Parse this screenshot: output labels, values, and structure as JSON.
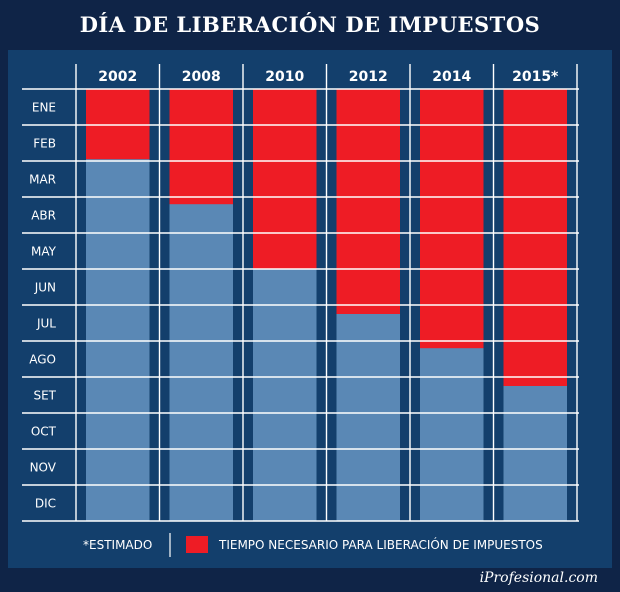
{
  "title": "DÍA DE LIBERACIÓN DE IMPUESTOS",
  "source": "iProfesional.com",
  "colors": {
    "background_dark": "#0f2447",
    "background_panel": "#133f6c",
    "red": "#ee1c25",
    "blue": "#5a88b5",
    "grid": "#ffffff"
  },
  "legend": {
    "note": "*ESTIMADO",
    "label": "TIEMPO NECESARIO PARA LIBERACIÓN DE IMPUESTOS"
  },
  "chart_data": {
    "type": "bar",
    "title": "DÍA DE LIBERACIÓN DE IMPUESTOS",
    "orientation": "vertical-downward",
    "categories": [
      "2002",
      "2008",
      "2010",
      "2012",
      "2014",
      "2015*"
    ],
    "months": [
      "ENE",
      "FEB",
      "MAR",
      "ABR",
      "MAY",
      "JUN",
      "JUL",
      "AGO",
      "SET",
      "OCT",
      "NOV",
      "DIC"
    ],
    "series": [
      {
        "name": "TIEMPO NECESARIO PARA LIBERACIÓN DE IMPUESTOS",
        "unit": "months from start of year",
        "values": [
          1.95,
          3.2,
          5.0,
          6.25,
          7.2,
          8.25
        ]
      }
    ],
    "ylim": [
      0,
      12
    ],
    "grid": true
  }
}
